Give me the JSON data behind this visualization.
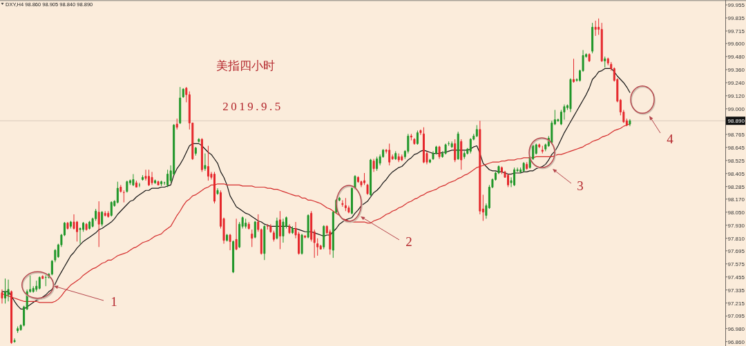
{
  "chart_data": {
    "type": "candlestick",
    "title": "美指四小时",
    "subtitle": "2019.9.5",
    "categories": [
      null,
      null,
      null,
      null,
      null,
      null,
      null,
      null,
      null,
      null,
      null,
      null,
      null,
      null,
      null,
      null,
      null,
      null,
      null,
      null,
      null,
      null,
      null,
      null,
      null,
      null,
      null,
      null,
      null,
      null,
      null,
      null,
      null,
      null,
      null,
      null,
      null,
      null,
      null,
      null,
      null,
      null,
      null,
      null,
      null,
      null,
      null,
      null,
      null,
      null,
      null,
      null,
      null,
      null,
      null,
      null,
      null,
      null,
      null,
      null,
      null,
      null,
      null,
      null,
      null,
      null,
      null,
      null,
      null,
      null,
      null,
      null,
      null,
      null,
      null,
      null,
      null,
      null,
      null,
      null,
      null,
      null,
      null,
      null,
      null,
      null,
      null,
      null,
      null,
      null,
      null,
      null,
      null,
      null,
      null,
      null,
      null,
      null,
      null,
      null,
      null,
      null,
      null,
      null,
      null,
      null,
      null,
      null,
      null,
      null,
      null,
      null,
      null,
      null,
      null,
      null,
      null,
      null,
      null,
      null,
      null,
      null,
      null,
      null,
      null,
      null,
      null,
      null,
      null,
      null,
      null,
      null,
      null,
      null,
      null,
      null,
      null,
      null,
      null,
      null,
      null,
      null,
      null,
      null,
      null,
      null,
      null,
      null,
      null,
      null,
      null,
      null,
      null,
      null,
      null,
      null,
      null,
      null,
      null,
      null,
      null,
      null,
      null,
      null,
      null,
      null,
      null,
      null,
      null,
      null,
      null,
      null,
      null,
      null,
      null,
      null,
      null,
      null,
      null,
      null,
      null,
      null,
      null,
      null,
      null,
      null,
      null,
      null,
      null,
      null,
      null,
      null,
      null,
      null,
      null,
      null,
      null,
      null,
      null,
      null,
      null,
      null
    ],
    "ohlc": [
      [
        97.31,
        97.34,
        97.21,
        97.26
      ],
      [
        97.26,
        97.44,
        97.21,
        97.32
      ],
      [
        97.29,
        97.43,
        97.23,
        97.34
      ],
      [
        97.32,
        97.33,
        96.84,
        96.85
      ],
      [
        96.86,
        96.89,
        96.85,
        96.87
      ],
      [
        96.96,
        97.0,
        96.94,
        96.98
      ],
      [
        96.97,
        97.02,
        96.96,
        97.01
      ],
      [
        97.01,
        97.19,
        97.0,
        97.18
      ],
      [
        97.16,
        97.34,
        97.15,
        97.32
      ],
      [
        97.32,
        97.47,
        97.31,
        97.34
      ],
      [
        97.32,
        97.37,
        97.31,
        97.35
      ],
      [
        97.34,
        97.42,
        97.32,
        97.37
      ],
      [
        97.35,
        97.46,
        97.34,
        97.45
      ],
      [
        97.46,
        97.47,
        97.44,
        97.44
      ],
      [
        97.45,
        97.47,
        97.37,
        97.45
      ],
      [
        97.45,
        97.49,
        97.44,
        97.48
      ],
      [
        97.48,
        97.61,
        97.47,
        97.6
      ],
      [
        97.61,
        97.71,
        97.59,
        97.7
      ],
      [
        97.64,
        97.76,
        97.63,
        97.75
      ],
      [
        97.75,
        97.85,
        97.73,
        97.84
      ],
      [
        97.84,
        97.96,
        97.83,
        97.95
      ],
      [
        97.95,
        97.96,
        97.89,
        97.9
      ],
      [
        97.92,
        97.97,
        97.9,
        97.96
      ],
      [
        97.96,
        98.03,
        97.89,
        97.9
      ],
      [
        97.96,
        97.97,
        97.78,
        97.87
      ],
      [
        97.89,
        97.91,
        97.76,
        97.9
      ],
      [
        97.89,
        97.96,
        97.87,
        97.95
      ],
      [
        97.94,
        97.95,
        97.88,
        97.89
      ],
      [
        97.9,
        97.97,
        97.89,
        97.96
      ],
      [
        97.92,
        98.0,
        97.91,
        97.99
      ],
      [
        97.99,
        98.08,
        97.97,
        98.06
      ],
      [
        98.05,
        98.15,
        97.73,
        97.94
      ],
      [
        97.94,
        98.06,
        97.92,
        98.05
      ],
      [
        98.04,
        98.06,
        98.01,
        98.02
      ],
      [
        98.04,
        98.06,
        98.0,
        98.01
      ],
      [
        98.02,
        98.15,
        98.01,
        98.14
      ],
      [
        98.11,
        98.16,
        98.1,
        98.15
      ],
      [
        98.14,
        98.33,
        98.13,
        98.27
      ],
      [
        98.28,
        98.3,
        98.23,
        98.24
      ],
      [
        98.23,
        98.25,
        98.14,
        98.23
      ],
      [
        98.24,
        98.34,
        98.23,
        98.33
      ],
      [
        98.32,
        98.35,
        98.3,
        98.34
      ],
      [
        98.3,
        98.4,
        98.29,
        98.35
      ],
      [
        98.32,
        98.34,
        98.28,
        98.28
      ],
      [
        98.3,
        98.32,
        98.28,
        98.3
      ],
      [
        98.35,
        98.39,
        98.34,
        98.37
      ],
      [
        98.38,
        98.44,
        98.34,
        98.36
      ],
      [
        98.38,
        98.44,
        98.29,
        98.3
      ],
      [
        98.37,
        98.42,
        98.3,
        98.32
      ],
      [
        98.32,
        98.35,
        98.31,
        98.34
      ],
      [
        98.33,
        98.34,
        98.3,
        98.3
      ],
      [
        98.31,
        98.34,
        98.29,
        98.33
      ],
      [
        98.32,
        98.33,
        98.3,
        98.32
      ],
      [
        98.3,
        98.44,
        98.28,
        98.4
      ],
      [
        98.34,
        98.48,
        98.32,
        98.43
      ],
      [
        98.4,
        98.86,
        98.39,
        98.85
      ],
      [
        98.86,
        98.91,
        98.81,
        98.83
      ],
      [
        98.87,
        99.2,
        98.86,
        99.1
      ],
      [
        99.11,
        99.19,
        99.1,
        99.18
      ],
      [
        99.19,
        99.2,
        99.06,
        99.13
      ],
      [
        99.13,
        99.16,
        98.81,
        98.87
      ],
      [
        98.87,
        98.87,
        98.53,
        98.54
      ],
      [
        98.59,
        98.65,
        98.57,
        98.64
      ],
      [
        98.7,
        98.73,
        98.69,
        98.72
      ],
      [
        98.72,
        98.73,
        98.42,
        98.44
      ],
      [
        98.45,
        98.59,
        98.43,
        98.48
      ],
      [
        98.47,
        98.66,
        98.34,
        98.38
      ],
      [
        98.4,
        98.42,
        98.35,
        98.37
      ],
      [
        98.4,
        98.42,
        98.13,
        98.15
      ],
      [
        98.22,
        98.27,
        98.21,
        98.25
      ],
      [
        98.23,
        98.25,
        97.9,
        97.92
      ],
      [
        97.99,
        98.0,
        97.76,
        97.79
      ],
      [
        97.79,
        97.85,
        97.78,
        97.84
      ],
      [
        97.84,
        97.85,
        97.7,
        97.78
      ],
      [
        97.5,
        97.79,
        97.49,
        97.78
      ],
      [
        97.8,
        97.99,
        97.7,
        97.71
      ],
      [
        97.73,
        97.96,
        97.72,
        97.94
      ],
      [
        97.92,
        98.01,
        97.9,
        98.0
      ],
      [
        97.92,
        97.99,
        97.9,
        97.95
      ],
      [
        97.94,
        97.96,
        97.89,
        97.9
      ],
      [
        97.85,
        97.89,
        97.73,
        97.81
      ],
      [
        97.82,
        97.97,
        97.81,
        97.96
      ],
      [
        97.96,
        98.03,
        97.87,
        97.89
      ],
      [
        97.89,
        97.9,
        97.66,
        97.67
      ],
      [
        97.67,
        97.93,
        97.61,
        97.92
      ],
      [
        97.92,
        97.94,
        97.89,
        97.92
      ],
      [
        97.92,
        97.94,
        97.86,
        97.87
      ],
      [
        97.86,
        97.88,
        97.78,
        97.8
      ],
      [
        97.81,
        98.0,
        97.8,
        97.97
      ],
      [
        97.98,
        98.06,
        97.71,
        97.83
      ],
      [
        97.83,
        97.99,
        97.77,
        97.96
      ],
      [
        97.92,
        98.01,
        97.9,
        98.0
      ],
      [
        97.92,
        97.94,
        97.85,
        97.86
      ],
      [
        97.86,
        97.92,
        97.85,
        97.9
      ],
      [
        97.9,
        97.96,
        97.81,
        97.84
      ],
      [
        97.85,
        97.87,
        97.66,
        97.67
      ],
      [
        97.67,
        97.85,
        97.66,
        97.84
      ],
      [
        97.83,
        97.84,
        97.81,
        97.82
      ],
      [
        97.82,
        98.03,
        97.81,
        98.02
      ],
      [
        98.04,
        98.06,
        97.78,
        97.8
      ],
      [
        97.87,
        97.89,
        97.63,
        97.77
      ],
      [
        97.76,
        97.81,
        97.65,
        97.73
      ],
      [
        97.74,
        97.75,
        97.71,
        97.71
      ],
      [
        97.73,
        97.93,
        97.71,
        97.92
      ],
      [
        97.92,
        97.93,
        97.85,
        97.86
      ],
      [
        97.87,
        97.89,
        97.66,
        97.71
      ],
      [
        97.7,
        98.06,
        97.63,
        98.05
      ],
      [
        98.05,
        98.17,
        98.04,
        98.16
      ],
      [
        98.16,
        98.19,
        98.15,
        98.18
      ],
      [
        98.13,
        98.16,
        98.1,
        98.12
      ],
      [
        98.11,
        98.18,
        98.06,
        98.09
      ],
      [
        98.09,
        98.11,
        98.04,
        98.05
      ],
      [
        98.04,
        98.28,
        98.03,
        98.27
      ],
      [
        98.27,
        98.39,
        98.26,
        98.38
      ],
      [
        98.37,
        98.38,
        98.32,
        98.33
      ],
      [
        98.33,
        98.34,
        98.28,
        98.3
      ],
      [
        98.34,
        98.41,
        98.3,
        98.32
      ],
      [
        98.3,
        98.31,
        98.21,
        98.22
      ],
      [
        98.21,
        98.54,
        98.2,
        98.53
      ],
      [
        98.52,
        98.54,
        98.42,
        98.45
      ],
      [
        98.45,
        98.56,
        98.43,
        98.54
      ],
      [
        98.5,
        98.58,
        98.48,
        98.56
      ],
      [
        98.56,
        98.63,
        98.55,
        98.62
      ],
      [
        98.62,
        98.63,
        98.59,
        98.61
      ],
      [
        98.62,
        98.68,
        98.48,
        98.51
      ],
      [
        98.56,
        98.58,
        98.53,
        98.54
      ],
      [
        98.54,
        98.61,
        98.53,
        98.59
      ],
      [
        98.56,
        98.59,
        98.51,
        98.53
      ],
      [
        98.56,
        98.58,
        98.52,
        98.53
      ],
      [
        98.56,
        98.62,
        98.54,
        98.61
      ],
      [
        98.61,
        98.77,
        98.59,
        98.75
      ],
      [
        98.75,
        98.77,
        98.71,
        98.74
      ],
      [
        98.72,
        98.73,
        98.67,
        98.68
      ],
      [
        98.68,
        98.8,
        98.67,
        98.78
      ],
      [
        98.8,
        98.81,
        98.76,
        98.78
      ],
      [
        98.77,
        98.83,
        98.5,
        98.51
      ],
      [
        98.59,
        98.61,
        98.49,
        98.51
      ],
      [
        98.51,
        98.54,
        98.5,
        98.53
      ],
      [
        98.54,
        98.61,
        98.53,
        98.59
      ],
      [
        98.59,
        98.66,
        98.58,
        98.65
      ],
      [
        98.65,
        98.66,
        98.54,
        98.56
      ],
      [
        98.56,
        98.61,
        98.55,
        98.59
      ],
      [
        98.59,
        98.68,
        98.58,
        98.67
      ],
      [
        98.68,
        98.7,
        98.66,
        98.68
      ],
      [
        98.65,
        98.7,
        98.64,
        98.68
      ],
      [
        98.68,
        98.72,
        98.51,
        98.53
      ],
      [
        98.54,
        98.79,
        98.53,
        98.77
      ],
      [
        98.7,
        98.72,
        98.44,
        98.53
      ],
      [
        98.56,
        98.61,
        98.54,
        98.59
      ],
      [
        98.59,
        98.64,
        98.58,
        98.63
      ],
      [
        98.61,
        98.73,
        98.59,
        98.72
      ],
      [
        98.72,
        98.77,
        98.71,
        98.75
      ],
      [
        98.75,
        98.85,
        98.74,
        98.81
      ],
      [
        98.81,
        98.89,
        98.03,
        98.06
      ],
      [
        98.08,
        98.21,
        97.97,
        98.05
      ],
      [
        98.02,
        98.13,
        97.99,
        98.11
      ],
      [
        98.09,
        98.3,
        98.08,
        98.28
      ],
      [
        98.28,
        98.36,
        98.27,
        98.35
      ],
      [
        98.35,
        98.42,
        98.34,
        98.41
      ],
      [
        98.41,
        98.48,
        98.4,
        98.47
      ],
      [
        98.46,
        98.47,
        98.4,
        98.42
      ],
      [
        98.42,
        98.43,
        98.37,
        98.37
      ],
      [
        98.39,
        98.4,
        98.28,
        98.3
      ],
      [
        98.32,
        98.37,
        98.28,
        98.34
      ],
      [
        98.3,
        98.46,
        98.29,
        98.44
      ],
      [
        98.43,
        98.46,
        98.42,
        98.44
      ],
      [
        98.42,
        98.46,
        98.41,
        98.44
      ],
      [
        98.43,
        98.51,
        98.42,
        98.5
      ],
      [
        98.49,
        98.51,
        98.44,
        98.45
      ],
      [
        98.46,
        98.57,
        98.45,
        98.56
      ],
      [
        98.54,
        98.67,
        98.53,
        98.66
      ],
      [
        98.59,
        98.68,
        98.58,
        98.67
      ],
      [
        98.67,
        98.68,
        98.64,
        98.65
      ],
      [
        98.62,
        98.66,
        98.59,
        98.61
      ],
      [
        98.63,
        98.68,
        98.61,
        98.67
      ],
      [
        98.66,
        98.75,
        98.65,
        98.73
      ],
      [
        98.69,
        98.89,
        98.68,
        98.87
      ],
      [
        98.86,
        98.99,
        98.85,
        98.9
      ],
      [
        98.89,
        98.91,
        98.88,
        98.9
      ],
      [
        98.86,
        98.99,
        98.85,
        98.97
      ],
      [
        98.97,
        99.04,
        98.9,
        99.02
      ],
      [
        99.01,
        99.04,
        98.99,
        99.03
      ],
      [
        99.0,
        99.28,
        98.97,
        99.27
      ],
      [
        99.27,
        99.46,
        99.24,
        99.25
      ],
      [
        99.26,
        99.28,
        99.25,
        99.27
      ],
      [
        99.26,
        99.36,
        99.25,
        99.35
      ],
      [
        99.35,
        99.54,
        99.34,
        99.49
      ],
      [
        99.48,
        99.51,
        99.47,
        99.5
      ],
      [
        99.5,
        99.51,
        99.43,
        99.44
      ],
      [
        99.53,
        99.79,
        99.51,
        99.75
      ],
      [
        99.75,
        99.81,
        99.67,
        99.73
      ],
      [
        99.75,
        99.83,
        99.68,
        99.73
      ],
      [
        99.73,
        99.79,
        99.43,
        99.44
      ],
      [
        99.44,
        99.48,
        99.38,
        99.46
      ],
      [
        99.46,
        99.47,
        99.4,
        99.42
      ],
      [
        99.41,
        99.43,
        99.35,
        99.37
      ],
      [
        99.37,
        99.38,
        99.25,
        99.26
      ],
      [
        99.27,
        99.28,
        99.06,
        99.07
      ],
      [
        99.08,
        99.09,
        98.94,
        98.97
      ],
      [
        98.97,
        98.99,
        98.87,
        98.88
      ],
      [
        98.89,
        98.91,
        98.84,
        98.85
      ],
      [
        98.86,
        98.905,
        98.84,
        98.89
      ]
    ],
    "colors": [
      "#e5262b",
      "#1e9628",
      "#1e9628",
      "#e5262b",
      "#1e9628",
      "#1e9628",
      "#1e9628",
      "#1e9628",
      "#1e9628",
      "#1e9628",
      "#1e9628",
      "#1e9628",
      "#1e9628",
      "#e5262b",
      "#1e9628",
      "#1e9628",
      "#1e9628",
      "#1e9628",
      "#1e9628",
      "#1e9628",
      "#1e9628",
      "#e5262b",
      "#1e9628",
      "#e5262b",
      "#e5262b",
      "#1e9628",
      "#1e9628",
      "#e5262b",
      "#1e9628",
      "#1e9628",
      "#1e9628",
      "#e5262b",
      "#1e9628",
      "#e5262b",
      "#e5262b",
      "#1e9628",
      "#1e9628",
      "#1e9628",
      "#e5262b",
      "#e5262b",
      "#1e9628",
      "#1e9628",
      "#1e9628",
      "#e5262b",
      "#1e9628",
      "#1e9628",
      "#e5262b",
      "#e5262b",
      "#e5262b",
      "#1e9628",
      "#e5262b",
      "#1e9628",
      "#1e9628",
      "#1e9628",
      "#1e9628",
      "#1e9628",
      "#e5262b",
      "#1e9628",
      "#1e9628",
      "#e5262b",
      "#e5262b",
      "#e5262b",
      "#1e9628",
      "#1e9628",
      "#e5262b",
      "#1e9628",
      "#e5262b",
      "#e5262b",
      "#e5262b",
      "#1e9628",
      "#e5262b",
      "#e5262b",
      "#1e9628",
      "#e5262b",
      "#1e9628",
      "#e5262b",
      "#1e9628",
      "#1e9628",
      "#1e9628",
      "#e5262b",
      "#e5262b",
      "#1e9628",
      "#e5262b",
      "#e5262b",
      "#1e9628",
      "#e5262b",
      "#e5262b",
      "#e5262b",
      "#1e9628",
      "#e5262b",
      "#1e9628",
      "#1e9628",
      "#e5262b",
      "#1e9628",
      "#e5262b",
      "#e5262b",
      "#1e9628",
      "#e5262b",
      "#1e9628",
      "#e5262b",
      "#e5262b",
      "#e5262b",
      "#e5262b",
      "#1e9628",
      "#e5262b",
      "#e5262b",
      "#1e9628",
      "#1e9628",
      "#1e9628",
      "#e5262b",
      "#e5262b",
      "#e5262b",
      "#1e9628",
      "#1e9628",
      "#e5262b",
      "#e5262b",
      "#e5262b",
      "#e5262b",
      "#1e9628",
      "#e5262b",
      "#1e9628",
      "#1e9628",
      "#1e9628",
      "#e5262b",
      "#e5262b",
      "#e5262b",
      "#1e9628",
      "#e5262b",
      "#e5262b",
      "#1e9628",
      "#1e9628",
      "#e5262b",
      "#e5262b",
      "#1e9628",
      "#e5262b",
      "#e5262b",
      "#e5262b",
      "#1e9628",
      "#1e9628",
      "#1e9628",
      "#e5262b",
      "#1e9628",
      "#1e9628",
      "#1e9628",
      "#1e9628",
      "#e5262b",
      "#1e9628",
      "#e5262b",
      "#1e9628",
      "#1e9628",
      "#1e9628",
      "#1e9628",
      "#1e9628",
      "#e5262b",
      "#e5262b",
      "#1e9628",
      "#1e9628",
      "#1e9628",
      "#1e9628",
      "#1e9628",
      "#e5262b",
      "#e5262b",
      "#e5262b",
      "#1e9628",
      "#1e9628",
      "#1e9628",
      "#1e9628",
      "#1e9628",
      "#e5262b",
      "#1e9628",
      "#1e9628",
      "#1e9628",
      "#e5262b",
      "#e5262b",
      "#1e9628",
      "#1e9628",
      "#1e9628",
      "#1e9628",
      "#1e9628",
      "#1e9628",
      "#1e9628",
      "#1e9628",
      "#1e9628",
      "#e5262b",
      "#1e9628",
      "#1e9628",
      "#1e9628",
      "#1e9628",
      "#e5262b",
      "#1e9628",
      "#e5262b",
      "#e5262b",
      "#e5262b",
      "#1e9628",
      "#e5262b",
      "#e5262b",
      "#e5262b",
      "#e5262b",
      "#e5262b",
      "#e5262b",
      "#e5262b",
      "#1e9628"
    ],
    "series": [
      {
        "type": "line",
        "color": "#141414",
        "values": [
          97.32,
          97.32,
          97.32,
          97.28,
          97.23,
          97.19,
          97.16,
          97.16,
          97.18,
          97.2,
          97.22,
          97.24,
          97.25,
          97.27,
          97.29,
          97.32,
          97.34,
          97.39,
          97.45,
          97.5,
          97.55,
          97.6,
          97.65,
          97.68,
          97.72,
          97.75,
          97.78,
          97.8,
          97.82,
          97.84,
          97.86,
          97.89,
          97.9,
          97.92,
          97.94,
          97.96,
          97.99,
          98.03,
          98.06,
          98.09,
          98.12,
          98.15,
          98.16,
          98.19,
          98.21,
          98.23,
          98.25,
          98.25,
          98.27,
          98.27,
          98.27,
          98.28,
          98.28,
          98.29,
          98.3,
          98.39,
          98.45,
          98.49,
          98.54,
          98.6,
          98.66,
          98.68,
          98.68,
          98.68,
          98.66,
          98.63,
          98.6,
          98.58,
          98.54,
          98.5,
          98.42,
          98.37,
          98.3,
          98.2,
          98.15,
          98.1,
          98.08,
          98.06,
          98.04,
          98.03,
          98.01,
          97.99,
          97.97,
          97.96,
          97.94,
          97.93,
          97.92,
          97.92,
          97.92,
          97.92,
          97.92,
          97.92,
          97.92,
          97.9,
          97.9,
          97.89,
          97.88,
          97.87,
          97.87,
          97.87,
          97.86,
          97.85,
          97.84,
          97.83,
          97.84,
          97.84,
          97.87,
          97.9,
          97.94,
          97.96,
          97.98,
          97.99,
          98.0,
          98.04,
          98.07,
          98.11,
          98.13,
          98.15,
          98.19,
          98.23,
          98.25,
          98.28,
          98.32,
          98.35,
          98.39,
          98.42,
          98.44,
          98.46,
          98.47,
          98.5,
          98.53,
          98.55,
          98.58,
          98.59,
          98.61,
          98.62,
          98.61,
          98.6,
          98.59,
          98.59,
          98.59,
          98.6,
          98.6,
          98.61,
          98.62,
          98.62,
          98.62,
          98.62,
          98.62,
          98.62,
          98.63,
          98.65,
          98.66,
          98.59,
          98.5,
          98.47,
          98.44,
          98.43,
          98.43,
          98.42,
          98.42,
          98.41,
          98.4,
          98.4,
          98.41,
          98.41,
          98.41,
          98.42,
          98.42,
          98.43,
          98.43,
          98.45,
          98.46,
          98.47,
          98.49,
          98.53,
          98.58,
          98.61,
          98.66,
          98.72,
          98.78,
          98.83,
          98.88,
          98.93,
          98.98,
          99.03,
          99.08,
          99.13,
          99.19,
          99.27,
          99.3,
          99.34,
          99.35,
          99.37,
          99.37,
          99.37,
          99.34,
          99.3,
          99.27,
          99.24,
          99.2,
          99.15
        ]
      },
      {
        "type": "line",
        "color": "#d42a2a",
        "values": [
          97.3,
          97.29,
          97.28,
          97.27,
          97.26,
          97.25,
          97.24,
          97.23,
          97.23,
          97.23,
          97.23,
          97.23,
          97.22,
          97.22,
          97.22,
          97.22,
          97.22,
          97.23,
          97.25,
          97.28,
          97.32,
          97.35,
          97.38,
          97.4,
          97.42,
          97.44,
          97.47,
          97.49,
          97.51,
          97.53,
          97.54,
          97.56,
          97.58,
          97.59,
          97.61,
          97.61,
          97.63,
          97.65,
          97.66,
          97.67,
          97.68,
          97.7,
          97.72,
          97.73,
          97.75,
          97.77,
          97.78,
          97.79,
          97.81,
          97.83,
          97.84,
          97.85,
          97.88,
          97.9,
          97.92,
          97.97,
          98.02,
          98.06,
          98.11,
          98.15,
          98.17,
          98.2,
          98.21,
          98.23,
          98.25,
          98.27,
          98.28,
          98.3,
          98.3,
          98.31,
          98.31,
          98.31,
          98.3,
          98.3,
          98.3,
          98.3,
          98.3,
          98.29,
          98.29,
          98.29,
          98.29,
          98.28,
          98.28,
          98.28,
          98.28,
          98.27,
          98.27,
          98.26,
          98.26,
          98.25,
          98.24,
          98.23,
          98.22,
          98.21,
          98.2,
          98.2,
          98.18,
          98.18,
          98.16,
          98.16,
          98.15,
          98.14,
          98.13,
          98.11,
          98.09,
          98.08,
          98.06,
          98.04,
          98.02,
          97.99,
          97.98,
          97.97,
          97.96,
          97.96,
          97.96,
          97.96,
          97.96,
          97.95,
          97.95,
          97.97,
          97.98,
          97.99,
          98.01,
          98.03,
          98.04,
          98.06,
          98.07,
          98.09,
          98.1,
          98.12,
          98.14,
          98.15,
          98.17,
          98.18,
          98.2,
          98.21,
          98.23,
          98.24,
          98.25,
          98.26,
          98.28,
          98.29,
          98.3,
          98.32,
          98.33,
          98.34,
          98.36,
          98.37,
          98.39,
          98.4,
          98.42,
          98.44,
          98.46,
          98.47,
          98.48,
          98.49,
          98.5,
          98.51,
          98.51,
          98.51,
          98.52,
          98.52,
          98.53,
          98.53,
          98.53,
          98.54,
          98.54,
          98.55,
          98.55,
          98.55,
          98.55,
          98.56,
          98.56,
          98.56,
          98.56,
          98.56,
          98.56,
          98.57,
          98.58,
          98.58,
          98.59,
          98.6,
          98.61,
          98.62,
          98.63,
          98.64,
          98.65,
          98.67,
          98.68,
          98.7,
          98.71,
          98.72,
          98.74,
          98.75,
          98.76,
          98.78,
          98.8,
          98.81,
          98.82,
          98.84,
          98.85,
          98.86
        ]
      }
    ],
    "ylim": [
      96.82,
      100.0
    ],
    "yticks": [
      99.955,
      99.835,
      99.715,
      {
        "value": 99.6,
        "label": "99.600"
      },
      {
        "value": 99.48,
        "label": "99.480"
      },
      {
        "value": 99.36,
        "label": "99.360"
      },
      {
        "value": 99.24,
        "label": "99.240"
      },
      {
        "value": 99.12,
        "label": "99.120"
      },
      {
        "value": 99,
        "label": "99.000"
      },
      98.765,
      98.645,
      98.525,
      98.405,
      98.285,
      {
        "value": 98.17,
        "label": "98.170"
      },
      {
        "value": 98.05,
        "label": "98.050"
      },
      {
        "value": 97.93,
        "label": "97.930"
      },
      {
        "value": 97.81,
        "label": "97.810"
      },
      97.695,
      97.575,
      97.455,
      97.335,
      97.215,
      97.095,
      {
        "value": 96.98,
        "label": "96.980"
      },
      {
        "value": 96.86,
        "label": "96.860"
      }
    ],
    "ref_lines": [
      {
        "axis": "y",
        "value": 98.89,
        "label": "98.890",
        "color": "#d8cabb"
      }
    ],
    "annotations": [
      "DXY,H4 98.860 98.905 98.840 98.890",
      "1",
      "2",
      "3",
      "4"
    ],
    "tick_labels": "y"
  }
}
